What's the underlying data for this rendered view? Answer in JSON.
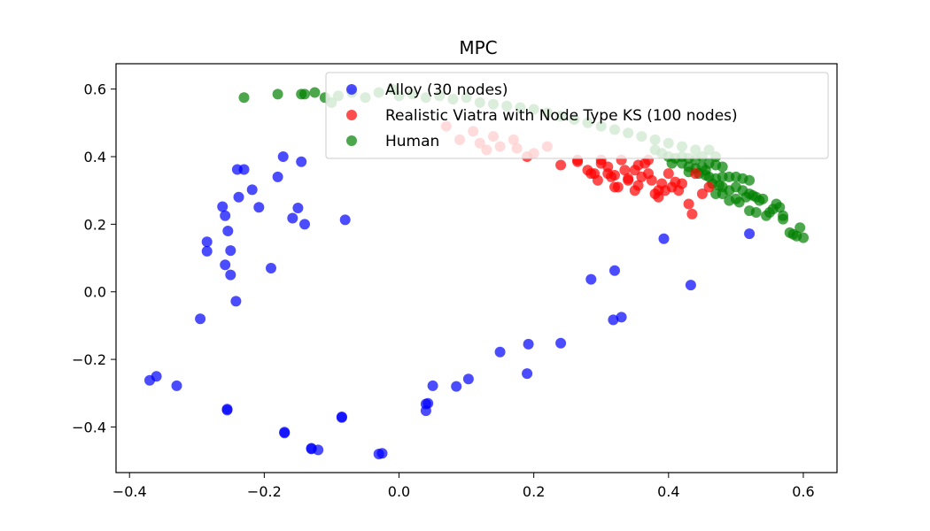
{
  "chart_data": {
    "type": "scatter",
    "title": "MPC",
    "xlabel": "",
    "ylabel": "",
    "xlim": [
      -0.42,
      0.65
    ],
    "ylim": [
      -0.535,
      0.675
    ],
    "xticks": [
      -0.4,
      -0.2,
      0.0,
      0.2,
      0.4,
      0.6
    ],
    "xtick_labels": [
      "−0.4",
      "−0.2",
      "0.0",
      "0.2",
      "0.4",
      "0.6"
    ],
    "yticks": [
      -0.4,
      -0.2,
      0.0,
      0.2,
      0.4,
      0.6
    ],
    "ytick_labels": [
      "−0.4",
      "−0.2",
      "0.0",
      "0.2",
      "0.4",
      "0.6"
    ],
    "grid": false,
    "legend_position": "top-right",
    "series": [
      {
        "name": "Human",
        "color": "#008000",
        "points": [
          [
            -0.23,
            0.575
          ],
          [
            -0.18,
            0.585
          ],
          [
            -0.145,
            0.585
          ],
          [
            -0.14,
            0.585
          ],
          [
            -0.125,
            0.59
          ],
          [
            -0.11,
            0.575
          ],
          [
            -0.1,
            0.56
          ],
          [
            -0.09,
            0.58
          ],
          [
            -0.07,
            0.59
          ],
          [
            -0.05,
            0.575
          ],
          [
            -0.03,
            0.59
          ],
          [
            -0.01,
            0.6
          ],
          [
            0.0,
            0.58
          ],
          [
            0.02,
            0.585
          ],
          [
            0.04,
            0.575
          ],
          [
            0.06,
            0.58
          ],
          [
            0.08,
            0.57
          ],
          [
            0.1,
            0.575
          ],
          [
            0.12,
            0.56
          ],
          [
            0.14,
            0.555
          ],
          [
            0.16,
            0.55
          ],
          [
            0.18,
            0.545
          ],
          [
            0.2,
            0.54
          ],
          [
            0.22,
            0.53
          ],
          [
            0.24,
            0.52
          ],
          [
            0.26,
            0.51
          ],
          [
            0.28,
            0.5
          ],
          [
            0.3,
            0.49
          ],
          [
            0.32,
            0.48
          ],
          [
            0.34,
            0.47
          ],
          [
            0.36,
            0.46
          ],
          [
            0.38,
            0.45
          ],
          [
            0.4,
            0.44
          ],
          [
            0.42,
            0.43
          ],
          [
            0.44,
            0.42
          ],
          [
            0.405,
            0.38
          ],
          [
            0.42,
            0.38
          ],
          [
            0.43,
            0.37
          ],
          [
            0.44,
            0.365
          ],
          [
            0.45,
            0.37
          ],
          [
            0.46,
            0.38
          ],
          [
            0.47,
            0.375
          ],
          [
            0.48,
            0.37
          ],
          [
            0.43,
            0.355
          ],
          [
            0.445,
            0.35
          ],
          [
            0.455,
            0.345
          ],
          [
            0.46,
            0.34
          ],
          [
            0.47,
            0.335
          ],
          [
            0.48,
            0.34
          ],
          [
            0.49,
            0.34
          ],
          [
            0.5,
            0.34
          ],
          [
            0.51,
            0.335
          ],
          [
            0.52,
            0.33
          ],
          [
            0.465,
            0.32
          ],
          [
            0.475,
            0.315
          ],
          [
            0.48,
            0.31
          ],
          [
            0.49,
            0.3
          ],
          [
            0.5,
            0.31
          ],
          [
            0.51,
            0.3
          ],
          [
            0.47,
            0.29
          ],
          [
            0.48,
            0.29
          ],
          [
            0.49,
            0.27
          ],
          [
            0.5,
            0.275
          ],
          [
            0.505,
            0.265
          ],
          [
            0.515,
            0.28
          ],
          [
            0.52,
            0.29
          ],
          [
            0.525,
            0.285
          ],
          [
            0.53,
            0.28
          ],
          [
            0.535,
            0.27
          ],
          [
            0.54,
            0.275
          ],
          [
            0.52,
            0.24
          ],
          [
            0.53,
            0.235
          ],
          [
            0.545,
            0.225
          ],
          [
            0.55,
            0.235
          ],
          [
            0.555,
            0.245
          ],
          [
            0.56,
            0.26
          ],
          [
            0.565,
            0.25
          ],
          [
            0.57,
            0.215
          ],
          [
            0.57,
            0.225
          ],
          [
            0.58,
            0.175
          ],
          [
            0.585,
            0.17
          ],
          [
            0.59,
            0.165
          ],
          [
            0.595,
            0.19
          ],
          [
            0.6,
            0.16
          ],
          [
            0.38,
            0.42
          ],
          [
            0.39,
            0.41
          ],
          [
            0.4,
            0.4
          ],
          [
            0.41,
            0.395
          ],
          [
            0.42,
            0.4
          ],
          [
            0.43,
            0.395
          ],
          [
            0.44,
            0.39
          ],
          [
            0.45,
            0.4
          ],
          [
            0.46,
            0.42
          ],
          [
            0.47,
            0.4
          ],
          [
            0.455,
            0.36
          ]
        ]
      },
      {
        "name": "Realistic Viatra with Node Type KS (100 nodes)",
        "color": "#ff0000",
        "points": [
          [
            0.07,
            0.49
          ],
          [
            0.09,
            0.45
          ],
          [
            0.11,
            0.475
          ],
          [
            0.12,
            0.44
          ],
          [
            0.13,
            0.42
          ],
          [
            0.14,
            0.46
          ],
          [
            0.15,
            0.43
          ],
          [
            0.17,
            0.45
          ],
          [
            0.175,
            0.425
          ],
          [
            0.19,
            0.4
          ],
          [
            0.2,
            0.41
          ],
          [
            0.22,
            0.43
          ],
          [
            0.24,
            0.375
          ],
          [
            0.265,
            0.385
          ],
          [
            0.28,
            0.36
          ],
          [
            0.285,
            0.35
          ],
          [
            0.29,
            0.35
          ],
          [
            0.295,
            0.33
          ],
          [
            0.3,
            0.38
          ],
          [
            0.31,
            0.37
          ],
          [
            0.31,
            0.35
          ],
          [
            0.315,
            0.34
          ],
          [
            0.32,
            0.345
          ],
          [
            0.32,
            0.31
          ],
          [
            0.325,
            0.31
          ],
          [
            0.33,
            0.39
          ],
          [
            0.335,
            0.36
          ],
          [
            0.34,
            0.335
          ],
          [
            0.34,
            0.33
          ],
          [
            0.35,
            0.36
          ],
          [
            0.35,
            0.3
          ],
          [
            0.355,
            0.315
          ],
          [
            0.36,
            0.34
          ],
          [
            0.365,
            0.38
          ],
          [
            0.37,
            0.35
          ],
          [
            0.375,
            0.33
          ],
          [
            0.38,
            0.29
          ],
          [
            0.385,
            0.3
          ],
          [
            0.385,
            0.28
          ],
          [
            0.39,
            0.32
          ],
          [
            0.395,
            0.3
          ],
          [
            0.4,
            0.35
          ],
          [
            0.405,
            0.31
          ],
          [
            0.41,
            0.325
          ],
          [
            0.415,
            0.3
          ],
          [
            0.42,
            0.32
          ],
          [
            0.43,
            0.26
          ],
          [
            0.435,
            0.23
          ],
          [
            0.45,
            0.29
          ],
          [
            0.46,
            0.31
          ],
          [
            0.44,
            0.35
          ],
          [
            0.37,
            0.39
          ],
          [
            0.355,
            0.375
          ],
          [
            0.3,
            0.39
          ],
          [
            0.265,
            0.39
          ]
        ]
      },
      {
        "name": "Alloy (30 nodes)",
        "color": "#0000ff",
        "points": [
          [
            -0.37,
            -0.262
          ],
          [
            -0.36,
            -0.25
          ],
          [
            -0.33,
            -0.278
          ],
          [
            -0.295,
            -0.08
          ],
          [
            -0.285,
            0.12
          ],
          [
            -0.285,
            0.148
          ],
          [
            -0.262,
            0.252
          ],
          [
            -0.258,
            0.225
          ],
          [
            -0.258,
            0.08
          ],
          [
            -0.254,
            0.18
          ],
          [
            -0.25,
            0.122
          ],
          [
            -0.25,
            0.05
          ],
          [
            -0.242,
            -0.028
          ],
          [
            -0.24,
            0.362
          ],
          [
            -0.238,
            0.28
          ],
          [
            -0.23,
            0.362
          ],
          [
            -0.218,
            0.302
          ],
          [
            -0.208,
            0.25
          ],
          [
            -0.19,
            0.07
          ],
          [
            -0.18,
            0.34
          ],
          [
            -0.172,
            0.4
          ],
          [
            -0.158,
            0.218
          ],
          [
            -0.15,
            0.248
          ],
          [
            -0.145,
            0.385
          ],
          [
            -0.14,
            0.2
          ],
          [
            -0.08,
            0.213
          ],
          [
            -0.255,
            -0.35
          ],
          [
            -0.255,
            -0.347
          ],
          [
            -0.17,
            -0.418
          ],
          [
            -0.17,
            -0.415
          ],
          [
            -0.13,
            -0.465
          ],
          [
            -0.13,
            -0.463
          ],
          [
            -0.12,
            -0.468
          ],
          [
            -0.085,
            -0.372
          ],
          [
            -0.085,
            -0.37
          ],
          [
            -0.03,
            -0.48
          ],
          [
            -0.025,
            -0.478
          ],
          [
            0.04,
            -0.352
          ],
          [
            0.04,
            -0.332
          ],
          [
            0.043,
            -0.33
          ],
          [
            0.05,
            -0.278
          ],
          [
            0.085,
            -0.28
          ],
          [
            0.103,
            -0.258
          ],
          [
            0.15,
            -0.178
          ],
          [
            0.19,
            -0.242
          ],
          [
            0.192,
            -0.155
          ],
          [
            0.24,
            -0.152
          ],
          [
            0.285,
            0.037
          ],
          [
            0.318,
            -0.083
          ],
          [
            0.32,
            0.063
          ],
          [
            0.33,
            -0.075
          ],
          [
            0.393,
            0.157
          ],
          [
            0.433,
            0.02
          ],
          [
            0.52,
            0.172
          ]
        ]
      }
    ]
  },
  "legend": {
    "entries": [
      {
        "label": "Alloy (30 nodes)",
        "color": "#0000ff"
      },
      {
        "label": "Realistic Viatra with Node Type KS (100 nodes)",
        "color": "#ff0000"
      },
      {
        "label": "Human",
        "color": "#008000"
      }
    ]
  }
}
